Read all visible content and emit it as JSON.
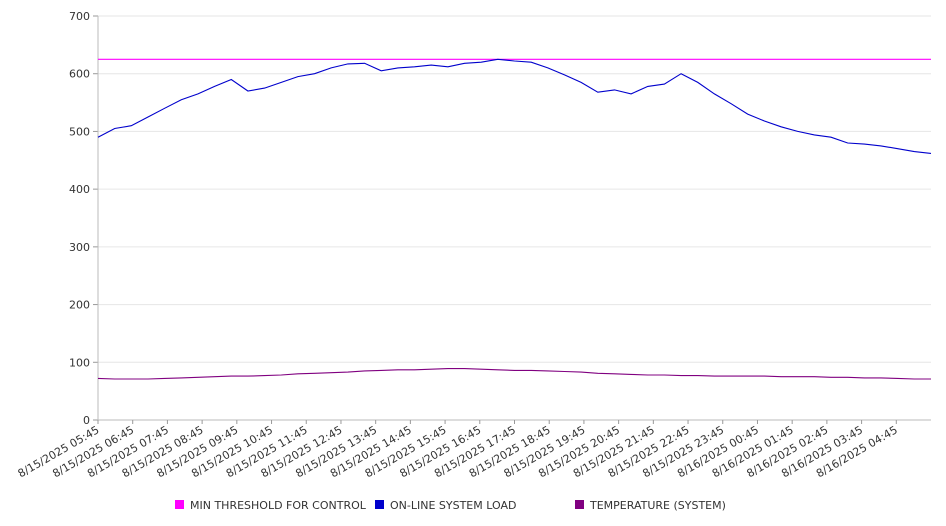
{
  "chart_data": {
    "type": "line",
    "title": "",
    "xlabel": "",
    "ylabel": "",
    "ylim": [
      0,
      700
    ],
    "yticks": [
      0,
      100,
      200,
      300,
      400,
      500,
      600,
      700
    ],
    "grid": true,
    "legend_position": "bottom",
    "x_tick_labels": [
      "8/15/2025 05:45",
      "8/15/2025 06:45",
      "8/15/2025 07:45",
      "8/15/2025 08:45",
      "8/15/2025 09:45",
      "8/15/2025 10:45",
      "8/15/2025 11:45",
      "8/15/2025 12:45",
      "8/15/2025 13:45",
      "8/15/2025 14:45",
      "8/15/2025 15:45",
      "8/15/2025 16:45",
      "8/15/2025 17:45",
      "8/15/2025 18:45",
      "8/15/2025 19:45",
      "8/15/2025 20:45",
      "8/15/2025 21:45",
      "8/15/2025 22:45",
      "8/15/2025 23:45",
      "8/16/2025 00:45",
      "8/16/2025 01:45",
      "8/16/2025 02:45",
      "8/16/2025 03:45",
      "8/16/2025 04:45"
    ],
    "x": [
      "05:45",
      "06:15",
      "06:45",
      "07:15",
      "07:45",
      "08:15",
      "08:45",
      "09:15",
      "09:45",
      "10:00",
      "10:15",
      "10:45",
      "11:15",
      "11:45",
      "12:15",
      "12:45",
      "13:15",
      "13:45",
      "14:00",
      "14:15",
      "14:45",
      "15:15",
      "15:45",
      "16:15",
      "16:45",
      "17:15",
      "17:45",
      "18:15",
      "18:45",
      "19:15",
      "19:45",
      "20:15",
      "20:45",
      "21:15",
      "21:45",
      "22:15",
      "22:45",
      "23:15",
      "23:45",
      "00:15",
      "00:45",
      "01:15",
      "01:45",
      "02:15",
      "02:45",
      "03:15",
      "03:45",
      "04:15",
      "04:45",
      "05:15",
      "05:45"
    ],
    "series": [
      {
        "name": "MIN THRESHOLD FOR CONTROL",
        "color": "#ff00ff",
        "values": [
          625,
          625,
          625,
          625,
          625,
          625,
          625,
          625,
          625,
          625,
          625,
          625,
          625,
          625,
          625,
          625,
          625,
          625,
          625,
          625,
          625,
          625,
          625,
          625,
          625,
          625,
          625,
          625,
          625,
          625,
          625,
          625,
          625,
          625,
          625,
          625,
          625,
          625,
          625,
          625,
          625,
          625,
          625,
          625,
          625,
          625,
          625,
          625,
          625,
          625,
          625
        ]
      },
      {
        "name": "ON-LINE SYSTEM LOAD",
        "color": "#0000cc",
        "values": [
          490,
          505,
          510,
          525,
          540,
          555,
          565,
          578,
          590,
          570,
          575,
          585,
          595,
          600,
          610,
          617,
          618,
          605,
          610,
          612,
          615,
          612,
          618,
          620,
          625,
          622,
          620,
          610,
          598,
          585,
          568,
          572,
          565,
          578,
          582,
          600,
          585,
          565,
          548,
          530,
          518,
          508,
          500,
          494,
          490,
          480,
          478,
          475,
          470,
          465,
          462
        ]
      },
      {
        "name": "TEMPERATURE (SYSTEM)",
        "color": "#800080",
        "values": [
          72,
          71,
          71,
          71,
          72,
          73,
          74,
          75,
          76,
          76,
          77,
          78,
          80,
          81,
          82,
          83,
          85,
          86,
          87,
          87,
          88,
          89,
          89,
          88,
          87,
          86,
          86,
          85,
          84,
          83,
          81,
          80,
          79,
          78,
          78,
          77,
          77,
          76,
          76,
          76,
          76,
          75,
          75,
          75,
          74,
          74,
          73,
          73,
          72,
          71,
          71
        ]
      }
    ]
  }
}
